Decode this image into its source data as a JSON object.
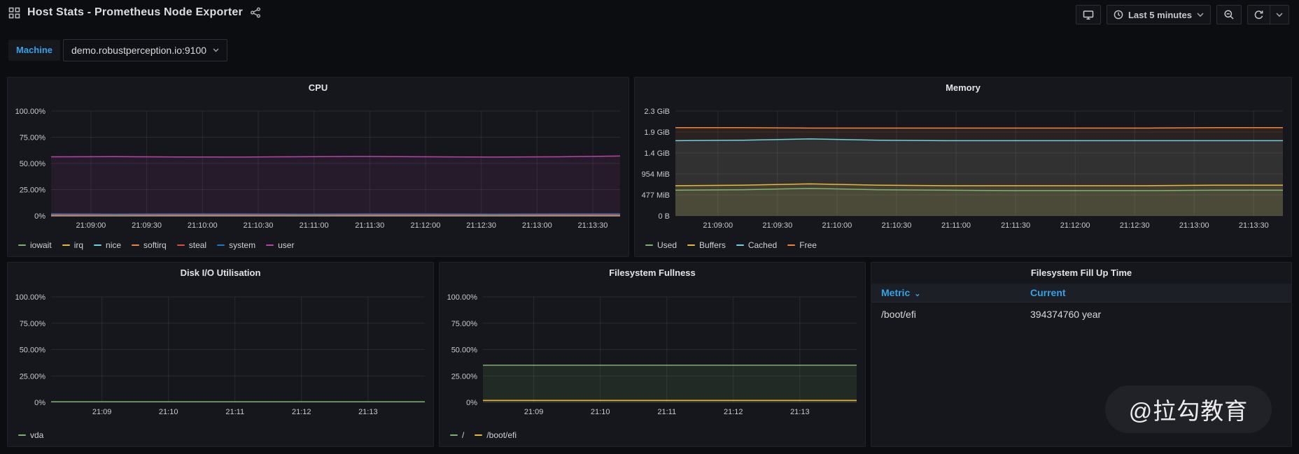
{
  "header": {
    "title": "Host Stats - Prometheus Node Exporter",
    "time_range": "Last 5 minutes"
  },
  "variables": {
    "machine_label": "Machine",
    "machine_value": "demo.robustperception.io:9100"
  },
  "watermark": "@拉勾教育",
  "colors": {
    "accent_blue": "#35a2e8",
    "page_bg": "#0c0d10",
    "panel_bg": "#16171c"
  },
  "chart_data": [
    {
      "type": "line",
      "title": "CPU",
      "xlabel": "",
      "ylabel": "",
      "ylim": [
        0,
        100
      ],
      "grid": true,
      "legend_position": "bottom-left",
      "fill_opacity": 0.1,
      "x_first_frac": 0.07,
      "x_step_frac": 0.098,
      "y_ticks": [
        {
          "label": "100.00%",
          "value": 100
        },
        {
          "label": "75.00%",
          "value": 75
        },
        {
          "label": "50.00%",
          "value": 50
        },
        {
          "label": "25.00%",
          "value": 25
        },
        {
          "label": "0%",
          "value": 0
        }
      ],
      "x_ticks": [
        "21:09:00",
        "21:09:30",
        "21:10:00",
        "21:10:30",
        "21:11:00",
        "21:11:30",
        "21:12:00",
        "21:12:30",
        "21:13:00",
        "21:13:30"
      ],
      "series": [
        {
          "name": "iowait",
          "color": "#7EB26D",
          "values": [
            0.3,
            0.3,
            0.25,
            0.3,
            0.3,
            0.25,
            0.3,
            0.3,
            0.25,
            0.3
          ]
        },
        {
          "name": "irq",
          "color": "#EAB839",
          "values": [
            0.05,
            0.05,
            0.05,
            0.05,
            0.05,
            0.05,
            0.05,
            0.05,
            0.05,
            0.05
          ]
        },
        {
          "name": "nice",
          "color": "#6ED0E0",
          "values": [
            0.1,
            0.1,
            0.1,
            0.1,
            0.1,
            0.1,
            0.1,
            0.1,
            0.1,
            0.1
          ]
        },
        {
          "name": "softirq",
          "color": "#EF843C",
          "values": [
            0.5,
            0.5,
            0.5,
            0.5,
            0.5,
            0.5,
            0.5,
            0.5,
            0.5,
            0.5
          ]
        },
        {
          "name": "steal",
          "color": "#E24D42",
          "values": [
            0.9,
            0.85,
            0.9,
            0.9,
            0.85,
            0.9,
            0.9,
            0.85,
            0.9,
            0.9
          ]
        },
        {
          "name": "system",
          "color": "#1F78C1",
          "values": [
            1.8,
            1.7,
            1.8,
            1.8,
            1.7,
            1.8,
            1.8,
            1.7,
            1.8,
            1.9
          ]
        },
        {
          "name": "user",
          "color": "#BA43A9",
          "values": [
            56.3,
            56.5,
            56.2,
            56.1,
            56.4,
            56.7,
            56.3,
            56.1,
            56.3,
            57.1
          ]
        }
      ]
    },
    {
      "type": "line",
      "title": "Memory",
      "xlabel": "",
      "ylabel": "",
      "ylim": [
        0,
        2.328
      ],
      "grid": true,
      "legend_position": "bottom-left",
      "fill_opacity": 0.1,
      "x_first_frac": 0.07,
      "x_step_frac": 0.098,
      "y_ticks": [
        {
          "label": "2.3 GiB",
          "value": 2.328
        },
        {
          "label": "1.9 GiB",
          "value": 1.863
        },
        {
          "label": "1.4 GiB",
          "value": 1.397
        },
        {
          "label": "954 MiB",
          "value": 0.932
        },
        {
          "label": "477 MiB",
          "value": 0.466
        },
        {
          "label": "0 B",
          "value": 0
        }
      ],
      "x_ticks": [
        "21:09:00",
        "21:09:30",
        "21:10:00",
        "21:10:30",
        "21:11:00",
        "21:11:30",
        "21:12:00",
        "21:12:30",
        "21:13:00",
        "21:13:30"
      ],
      "series": [
        {
          "name": "Used",
          "color": "#7EB26D",
          "values": [
            0.57,
            0.58,
            0.61,
            0.58,
            0.57,
            0.56,
            0.56,
            0.56,
            0.57,
            0.57
          ]
        },
        {
          "name": "Buffers",
          "color": "#EAB839",
          "values": [
            0.67,
            0.68,
            0.71,
            0.68,
            0.67,
            0.67,
            0.67,
            0.67,
            0.68,
            0.68
          ]
        },
        {
          "name": "Cached",
          "color": "#6ED0E0",
          "values": [
            1.67,
            1.68,
            1.71,
            1.68,
            1.67,
            1.67,
            1.67,
            1.67,
            1.67,
            1.67
          ]
        },
        {
          "name": "Free",
          "color": "#EF843C",
          "values": [
            1.96,
            1.96,
            1.95,
            1.95,
            1.95,
            1.95,
            1.95,
            1.95,
            1.96,
            1.96
          ]
        }
      ]
    },
    {
      "type": "line",
      "title": "Disk I/O Utilisation",
      "xlabel": "",
      "ylabel": "",
      "ylim": [
        0,
        100
      ],
      "grid": true,
      "legend_position": "bottom-left",
      "fill_opacity": 0.1,
      "x_first_frac": 0.136,
      "x_step_frac": 0.178,
      "y_ticks": [
        {
          "label": "100.00%",
          "value": 100
        },
        {
          "label": "75.00%",
          "value": 75
        },
        {
          "label": "50.00%",
          "value": 50
        },
        {
          "label": "25.00%",
          "value": 25
        },
        {
          "label": "0%",
          "value": 0
        }
      ],
      "x_ticks": [
        "21:09",
        "21:10",
        "21:11",
        "21:12",
        "21:13"
      ],
      "series": [
        {
          "name": "vda",
          "color": "#7EB26D",
          "values": [
            0.5,
            0.5,
            0.5,
            0.5,
            0.5,
            0.5
          ]
        }
      ]
    },
    {
      "type": "line",
      "title": "Filesystem Fullness",
      "xlabel": "",
      "ylabel": "",
      "ylim": [
        0,
        100
      ],
      "grid": true,
      "legend_position": "bottom-left",
      "fill_opacity": 0.12,
      "x_first_frac": 0.136,
      "x_step_frac": 0.178,
      "y_ticks": [
        {
          "label": "100.00%",
          "value": 100
        },
        {
          "label": "75.00%",
          "value": 75
        },
        {
          "label": "50.00%",
          "value": 50
        },
        {
          "label": "25.00%",
          "value": 25
        },
        {
          "label": "0%",
          "value": 0
        }
      ],
      "x_ticks": [
        "21:09",
        "21:10",
        "21:11",
        "21:12",
        "21:13"
      ],
      "series": [
        {
          "name": "/",
          "color": "#7EB26D",
          "values": [
            35.2,
            35.2,
            35.2,
            35.2,
            35.2,
            35.2
          ]
        },
        {
          "name": "/boot/efi",
          "color": "#EAB839",
          "values": [
            1.8,
            1.8,
            1.8,
            1.8,
            1.8,
            1.8
          ]
        }
      ]
    },
    {
      "type": "table",
      "title": "Filesystem Fill Up Time",
      "columns": [
        {
          "label": "Metric",
          "sorted": true
        },
        {
          "label": "Current",
          "sorted": false
        }
      ],
      "rows": [
        [
          "/boot/efi",
          "394374760 year"
        ]
      ]
    }
  ]
}
